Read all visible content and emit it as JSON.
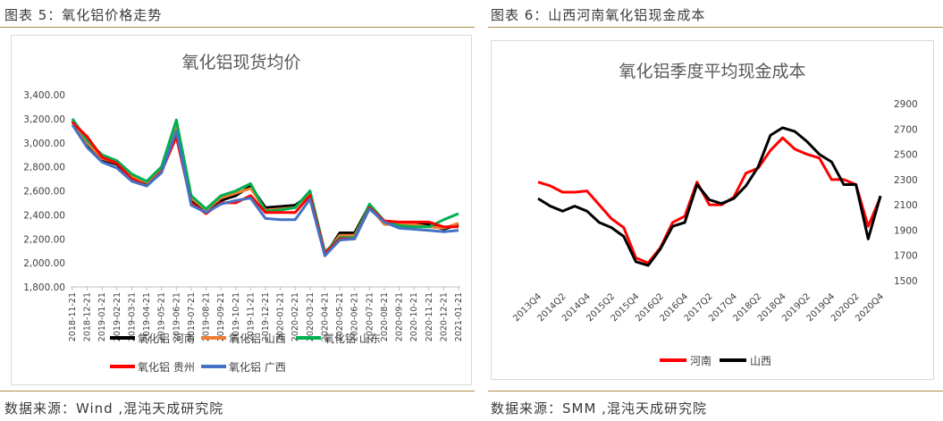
{
  "left": {
    "caption": "图表 5：氧化铝价格走势",
    "source": "数据来源：Wind ,混沌天成研究院"
  },
  "right": {
    "caption": "图表 6：山西河南氧化铝现金成本",
    "source": "数据来源：SMM ,混沌天成研究院"
  },
  "chart_data": [
    {
      "type": "line",
      "title": "氧化铝现货均价",
      "y_ticks": [
        "1,800.00",
        "2,000.00",
        "2,200.00",
        "2,400.00",
        "2,600.00",
        "2,800.00",
        "3,000.00",
        "3,200.00",
        "3,400.00"
      ],
      "ylim": [
        1800,
        3400
      ],
      "grid": false,
      "legend_position": "bottom",
      "categories": [
        "2018-11-21",
        "2018-12-21",
        "2019-01-21",
        "2019-02-21",
        "2019-03-21",
        "2019-04-21",
        "2019-05-21",
        "2019-06-21",
        "2019-07-21",
        "2019-08-21",
        "2019-09-21",
        "2019-10-21",
        "2019-11-21",
        "2019-12-21",
        "2020-01-21",
        "2020-02-21",
        "2020-03-21",
        "2020-04-21",
        "2020-05-21",
        "2020-06-21",
        "2020-07-21",
        "2020-08-21",
        "2020-09-21",
        "2020-10-21",
        "2020-11-21",
        "2020-12-21",
        "2021-01-21"
      ],
      "series": [
        {
          "name": "氧化铝 河南",
          "color": "#000000",
          "values": [
            3180,
            2980,
            2860,
            2820,
            2700,
            2650,
            2780,
            3170,
            2520,
            2430,
            2520,
            2560,
            2640,
            2460,
            2470,
            2480,
            2570,
            2060,
            2250,
            2250,
            2480,
            2330,
            2330,
            2330,
            2320,
            2280,
            2320
          ]
        },
        {
          "name": "氧化铝 山西",
          "color": "#ED7D31",
          "values": [
            3190,
            3000,
            2870,
            2830,
            2720,
            2670,
            2790,
            3150,
            2540,
            2440,
            2540,
            2580,
            2620,
            2440,
            2450,
            2460,
            2590,
            2070,
            2230,
            2230,
            2470,
            2320,
            2320,
            2320,
            2300,
            2290,
            2330
          ]
        },
        {
          "name": "氧化铝 山东",
          "color": "#00B050",
          "values": [
            3200,
            3020,
            2900,
            2850,
            2740,
            2680,
            2800,
            3190,
            2560,
            2450,
            2560,
            2600,
            2660,
            2430,
            2440,
            2460,
            2600,
            2090,
            2210,
            2210,
            2490,
            2350,
            2310,
            2300,
            2300,
            2360,
            2410
          ]
        },
        {
          "name": "氧化铝 贵州",
          "color": "#FF0000",
          "values": [
            3170,
            3050,
            2880,
            2830,
            2700,
            2640,
            2760,
            3050,
            2500,
            2410,
            2500,
            2500,
            2560,
            2420,
            2420,
            2420,
            2560,
            2080,
            2200,
            2200,
            2460,
            2350,
            2340,
            2340,
            2340,
            2300,
            2300
          ]
        },
        {
          "name": "氧化铝 广西",
          "color": "#4472C4",
          "values": [
            3150,
            2960,
            2840,
            2790,
            2680,
            2640,
            2750,
            3100,
            2480,
            2420,
            2490,
            2520,
            2540,
            2370,
            2360,
            2360,
            2530,
            2060,
            2190,
            2200,
            2450,
            2340,
            2290,
            2280,
            2270,
            2260,
            2270
          ]
        }
      ]
    },
    {
      "type": "line",
      "title": "氧化铝季度平均现金成本",
      "y_ticks": [
        "1500",
        "1700",
        "1900",
        "2100",
        "2300",
        "2500",
        "2700",
        "2900"
      ],
      "ylim": [
        1500,
        2900
      ],
      "x_tick_labels": [
        "2013Q4",
        "2014Q2",
        "2014Q4",
        "2015Q2",
        "2015Q4",
        "2016Q2",
        "2016Q4",
        "2017Q2",
        "2017Q4",
        "2018Q2",
        "2018Q4",
        "2019Q2",
        "2019Q4",
        "2020Q2",
        "2020Q4"
      ],
      "grid": false,
      "legend_position": "bottom",
      "categories": [
        "2013Q4",
        "2014Q1",
        "2014Q2",
        "2014Q3",
        "2014Q4",
        "2015Q1",
        "2015Q2",
        "2015Q3",
        "2015Q4",
        "2016Q1",
        "2016Q2",
        "2016Q3",
        "2016Q4",
        "2017Q1",
        "2017Q2",
        "2017Q3",
        "2017Q4",
        "2018Q1",
        "2018Q2",
        "2018Q3",
        "2018Q4",
        "2019Q1",
        "2019Q2",
        "2019Q3",
        "2019Q4",
        "2020Q1",
        "2020Q2",
        "2020Q3",
        "2020Q4"
      ],
      "series": [
        {
          "name": "河南",
          "color": "#FF0000",
          "values": [
            2280,
            2250,
            2200,
            2200,
            2210,
            2100,
            1990,
            1920,
            1680,
            1640,
            1760,
            1960,
            2010,
            2280,
            2100,
            2100,
            2160,
            2350,
            2390,
            2530,
            2630,
            2540,
            2500,
            2470,
            2300,
            2300,
            2260,
            1930,
            2160
          ]
        },
        {
          "name": "山西",
          "color": "#000000",
          "values": [
            2150,
            2090,
            2050,
            2090,
            2050,
            1960,
            1920,
            1850,
            1650,
            1620,
            1750,
            1930,
            1960,
            2260,
            2140,
            2110,
            2150,
            2250,
            2400,
            2650,
            2710,
            2680,
            2600,
            2500,
            2440,
            2260,
            2260,
            1830,
            2170
          ]
        }
      ]
    }
  ]
}
